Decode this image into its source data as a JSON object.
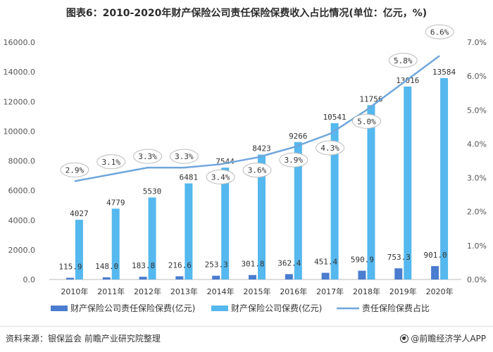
{
  "title": "图表6：2010-2020年财产保险公司责任保险保费收入占比情况(单位：亿元，%)",
  "source": "资料来源：银保监会 前瞻产业研究院整理",
  "brand": "@前瞻经济学人APP",
  "colors": {
    "liability_bar": "#4a7ccf",
    "total_bar": "#55b8ee",
    "share_line": "#6fa6dc"
  },
  "chart_data": {
    "type": "bar",
    "categories": [
      "2010年",
      "2011年",
      "2012年",
      "2013年",
      "2014年",
      "2015年",
      "2016年",
      "2017年",
      "2018年",
      "2019年",
      "2020年"
    ],
    "left_axis": {
      "ylim": [
        0,
        16000
      ],
      "ticks": [
        "0.0",
        "2000.0",
        "4000.0",
        "6000.0",
        "8000.0",
        "10000.0",
        "12000.0",
        "14000.0",
        "16000.0"
      ]
    },
    "right_axis": {
      "ylim": [
        0,
        7
      ],
      "ticks": [
        "0.0%",
        "1.0%",
        "2.0%",
        "3.0%",
        "4.0%",
        "5.0%",
        "6.0%",
        "7.0%"
      ]
    },
    "series": [
      {
        "name": "财产保险公司责任保险保费(亿元)",
        "kind": "bar",
        "axis": "left",
        "values": [
          115.9,
          148.0,
          183.8,
          216.6,
          253.3,
          301.8,
          362.4,
          451.4,
          590.9,
          753.3,
          901.0
        ],
        "labels": [
          "115.9",
          "148.0",
          "183.8",
          "216.6",
          "253.3",
          "301.8",
          "362.4",
          "451.4",
          "590.9",
          "753.3",
          "901.0"
        ]
      },
      {
        "name": "财产保险公司保费(亿元)",
        "kind": "bar",
        "axis": "left",
        "values": [
          4027,
          4779,
          5530,
          6481,
          7544,
          8423,
          9266,
          10541,
          11756,
          13016,
          13584
        ],
        "labels": [
          "4027",
          "4779",
          "5530",
          "6481",
          "7544",
          "8423",
          "9266",
          "10541",
          "11756",
          "13016",
          "13584"
        ]
      },
      {
        "name": "责任保险保费占比",
        "kind": "line",
        "axis": "right",
        "values": [
          2.9,
          3.1,
          3.3,
          3.3,
          3.4,
          3.6,
          3.9,
          4.3,
          5.0,
          5.8,
          6.6
        ],
        "labels": [
          "2.9%",
          "3.1%",
          "3.3%",
          "3.3%",
          "3.4%",
          "3.6%",
          "3.9%",
          "4.3%",
          "5.0%",
          "5.8%",
          "6.6%"
        ]
      }
    ],
    "legend": "bottom",
    "grid": false
  }
}
